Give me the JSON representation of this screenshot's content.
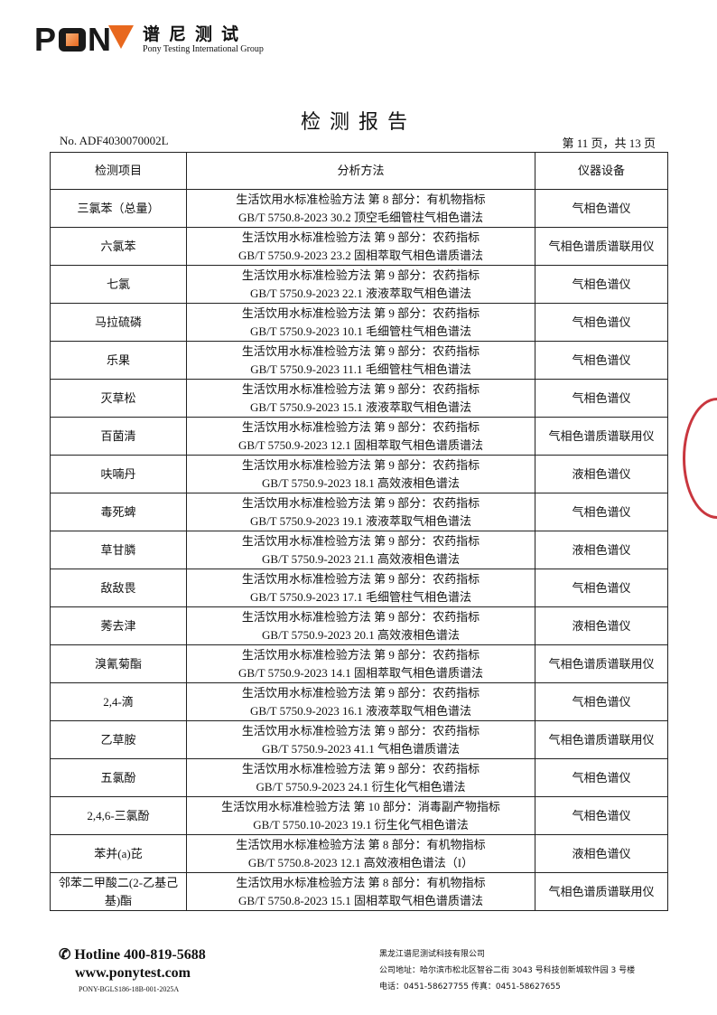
{
  "header": {
    "logo_text": "PONY",
    "logo_cn": "谱尼测试",
    "logo_en": "Pony Testing International Group"
  },
  "title": "检测报告",
  "report_no": "No. ADF4030070002L",
  "page_info": "第 11 页，共 13 页",
  "table": {
    "columns": [
      "检测项目",
      "分析方法",
      "仪器设备"
    ],
    "rows": [
      {
        "item": "三氯苯（总量）",
        "method1": "生活饮用水标准检验方法 第 8 部分：有机物指标",
        "method2": "GB/T 5750.8-2023 30.2 顶空毛细管柱气相色谱法",
        "instrument": "气相色谱仪"
      },
      {
        "item": "六氯苯",
        "method1": "生活饮用水标准检验方法 第 9 部分：农药指标",
        "method2": "GB/T 5750.9-2023 23.2 固相萃取气相色谱质谱法",
        "instrument": "气相色谱质谱联用仪"
      },
      {
        "item": "七氯",
        "method1": "生活饮用水标准检验方法 第 9 部分：农药指标",
        "method2": "GB/T 5750.9-2023 22.1 液液萃取气相色谱法",
        "instrument": "气相色谱仪"
      },
      {
        "item": "马拉硫磷",
        "method1": "生活饮用水标准检验方法 第 9 部分：农药指标",
        "method2": "GB/T 5750.9-2023 10.1 毛细管柱气相色谱法",
        "instrument": "气相色谱仪"
      },
      {
        "item": "乐果",
        "method1": "生活饮用水标准检验方法 第 9 部分：农药指标",
        "method2": "GB/T 5750.9-2023 11.1 毛细管柱气相色谱法",
        "instrument": "气相色谱仪"
      },
      {
        "item": "灭草松",
        "method1": "生活饮用水标准检验方法 第 9 部分：农药指标",
        "method2": "GB/T 5750.9-2023 15.1 液液萃取气相色谱法",
        "instrument": "气相色谱仪"
      },
      {
        "item": "百菌清",
        "method1": "生活饮用水标准检验方法 第 9 部分：农药指标",
        "method2": "GB/T 5750.9-2023 12.1 固相萃取气相色谱质谱法",
        "instrument": "气相色谱质谱联用仪"
      },
      {
        "item": "呋喃丹",
        "method1": "生活饮用水标准检验方法 第 9 部分：农药指标",
        "method2": "GB/T 5750.9-2023 18.1 高效液相色谱法",
        "instrument": "液相色谱仪"
      },
      {
        "item": "毒死蜱",
        "method1": "生活饮用水标准检验方法 第 9 部分：农药指标",
        "method2": "GB/T 5750.9-2023 19.1 液液萃取气相色谱法",
        "instrument": "气相色谱仪"
      },
      {
        "item": "草甘膦",
        "method1": "生活饮用水标准检验方法 第 9 部分：农药指标",
        "method2": "GB/T 5750.9-2023 21.1 高效液相色谱法",
        "instrument": "液相色谱仪"
      },
      {
        "item": "敌敌畏",
        "method1": "生活饮用水标准检验方法 第 9 部分：农药指标",
        "method2": "GB/T 5750.9-2023 17.1 毛细管柱气相色谱法",
        "instrument": "气相色谱仪"
      },
      {
        "item": "莠去津",
        "method1": "生活饮用水标准检验方法 第 9 部分：农药指标",
        "method2": "GB/T 5750.9-2023 20.1 高效液相色谱法",
        "instrument": "液相色谱仪"
      },
      {
        "item": "溴氰菊酯",
        "method1": "生活饮用水标准检验方法 第 9 部分：农药指标",
        "method2": "GB/T 5750.9-2023 14.1 固相萃取气相色谱质谱法",
        "instrument": "气相色谱质谱联用仪"
      },
      {
        "item": "2,4-滴",
        "method1": "生活饮用水标准检验方法 第 9 部分：农药指标",
        "method2": "GB/T 5750.9-2023 16.1 液液萃取气相色谱法",
        "instrument": "气相色谱仪"
      },
      {
        "item": "乙草胺",
        "method1": "生活饮用水标准检验方法 第 9 部分：农药指标",
        "method2": "GB/T 5750.9-2023 41.1 气相色谱质谱法",
        "instrument": "气相色谱质谱联用仪"
      },
      {
        "item": "五氯酚",
        "method1": "生活饮用水标准检验方法 第 9 部分：农药指标",
        "method2": "GB/T 5750.9-2023 24.1 衍生化气相色谱法",
        "instrument": "气相色谱仪"
      },
      {
        "item": "2,4,6-三氯酚",
        "method1": "生活饮用水标准检验方法 第 10 部分：消毒副产物指标",
        "method2": "GB/T 5750.10-2023 19.1 衍生化气相色谱法",
        "instrument": "气相色谱仪"
      },
      {
        "item": "苯并(a)芘",
        "method1": "生活饮用水标准检验方法 第 8 部分：有机物指标",
        "method2": "GB/T 5750.8-2023 12.1 高效液相色谱法（I）",
        "instrument": "液相色谱仪"
      },
      {
        "item": "邻苯二甲酸二(2-乙基己基)酯",
        "method1": "生活饮用水标准检验方法 第 8 部分：有机物指标",
        "method2": "GB/T 5750.8-2023 15.1 固相萃取气相色谱质谱法",
        "instrument": "气相色谱质谱联用仪"
      }
    ]
  },
  "footer": {
    "hotline": "Hotline 400-819-5688",
    "website": "www.ponytest.com",
    "doc_code": "PONY-BGLS186-18B-001-2025A",
    "company": "黑龙江谱尼测试科技有限公司",
    "address": "公司地址：哈尔滨市松北区智谷二街 3043 号科技创新城软件园 3 号楼",
    "phone": "电话：0451-58627755  传真：0451-58627655"
  },
  "colors": {
    "brand_orange": "#e8681e",
    "seal_red": "#c9363e"
  }
}
